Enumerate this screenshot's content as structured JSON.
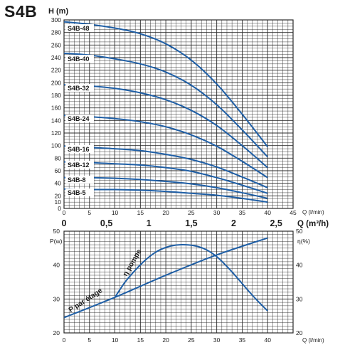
{
  "model": "S4B",
  "colors": {
    "curve": "#1f5fa6",
    "grid": "#2a2a2a",
    "text": "#1a1a1a"
  },
  "chart_data": [
    {
      "type": "line",
      "ylabel": "H (m)",
      "xlabel": "Q (l/min)",
      "xlabel2": "Q (m³/h)",
      "xlim": [
        0,
        45
      ],
      "ylim": [
        0,
        300
      ],
      "xticks": [
        0,
        5,
        10,
        15,
        20,
        25,
        30,
        35,
        40,
        45
      ],
      "yticks": [
        0,
        10,
        20,
        40,
        60,
        80,
        100,
        120,
        140,
        160,
        180,
        200,
        220,
        240,
        260,
        280,
        300
      ],
      "x2ticks": [
        "0",
        "0,5",
        "1",
        "1,5",
        "2",
        "2,5"
      ],
      "x2values": [
        0,
        0.5,
        1,
        1.5,
        2,
        2.5
      ],
      "series": [
        {
          "name": "S4B-48",
          "x": [
            0,
            5,
            10,
            15,
            20,
            25,
            30,
            35,
            40
          ],
          "values": [
            297,
            293,
            287,
            278,
            262,
            236,
            198,
            150,
            98
          ]
        },
        {
          "name": "S4B-40",
          "x": [
            0,
            5,
            10,
            15,
            20,
            25,
            30,
            35,
            40
          ],
          "values": [
            247,
            244,
            238,
            230,
            217,
            196,
            165,
            125,
            82
          ]
        },
        {
          "name": "S4B-32",
          "x": [
            0,
            5,
            10,
            15,
            20,
            25,
            30,
            35,
            40
          ],
          "values": [
            197,
            195,
            191,
            184,
            173,
            156,
            132,
            100,
            65
          ]
        },
        {
          "name": "S4B-24",
          "x": [
            0,
            5,
            10,
            15,
            20,
            25,
            30,
            35,
            40
          ],
          "values": [
            148,
            146,
            143,
            138,
            130,
            117,
            99,
            75,
            49
          ]
        },
        {
          "name": "S4B-16",
          "x": [
            0,
            5,
            10,
            15,
            20,
            25,
            30,
            35,
            40
          ],
          "values": [
            99,
            97,
            95,
            92,
            86,
            78,
            66,
            50,
            33
          ]
        },
        {
          "name": "S4B-12",
          "x": [
            0,
            5,
            10,
            15,
            20,
            25,
            30,
            35,
            40
          ],
          "values": [
            74,
            73,
            71,
            69,
            65,
            59,
            49,
            37,
            24
          ]
        },
        {
          "name": "S4B-8",
          "x": [
            0,
            5,
            10,
            15,
            20,
            25,
            30,
            35,
            40
          ],
          "values": [
            49,
            49,
            48,
            46,
            43,
            39,
            33,
            25,
            16
          ]
        },
        {
          "name": "S4B-5",
          "x": [
            0,
            5,
            10,
            15,
            20,
            25,
            30,
            35,
            40
          ],
          "values": [
            31,
            30,
            30,
            29,
            27,
            24,
            21,
            16,
            10
          ]
        }
      ]
    },
    {
      "type": "line",
      "ylabel": "P(w)",
      "ylabel2": "η(%)",
      "xlabel": "Q (l/min)",
      "xlim": [
        0,
        40
      ],
      "ylim": [
        20,
        50
      ],
      "xticks": [
        0,
        5,
        10,
        15,
        20,
        25,
        30,
        35,
        40
      ],
      "yticks": [
        20,
        30,
        40,
        50
      ],
      "series": [
        {
          "name": "P par étage",
          "x": [
            0,
            10,
            20,
            30,
            40
          ],
          "values": [
            24.5,
            30.5,
            37,
            43,
            48
          ]
        },
        {
          "name": "η pompe",
          "x": [
            10,
            12,
            14,
            16,
            18,
            20,
            22,
            24,
            26,
            28,
            30,
            32,
            34,
            36,
            38,
            40
          ],
          "values": [
            30.5,
            35,
            38.5,
            41.5,
            43.8,
            45.2,
            45.9,
            46,
            45.6,
            44.5,
            42.5,
            39.6,
            36.3,
            32.8,
            29.5,
            26.5
          ]
        }
      ]
    }
  ]
}
